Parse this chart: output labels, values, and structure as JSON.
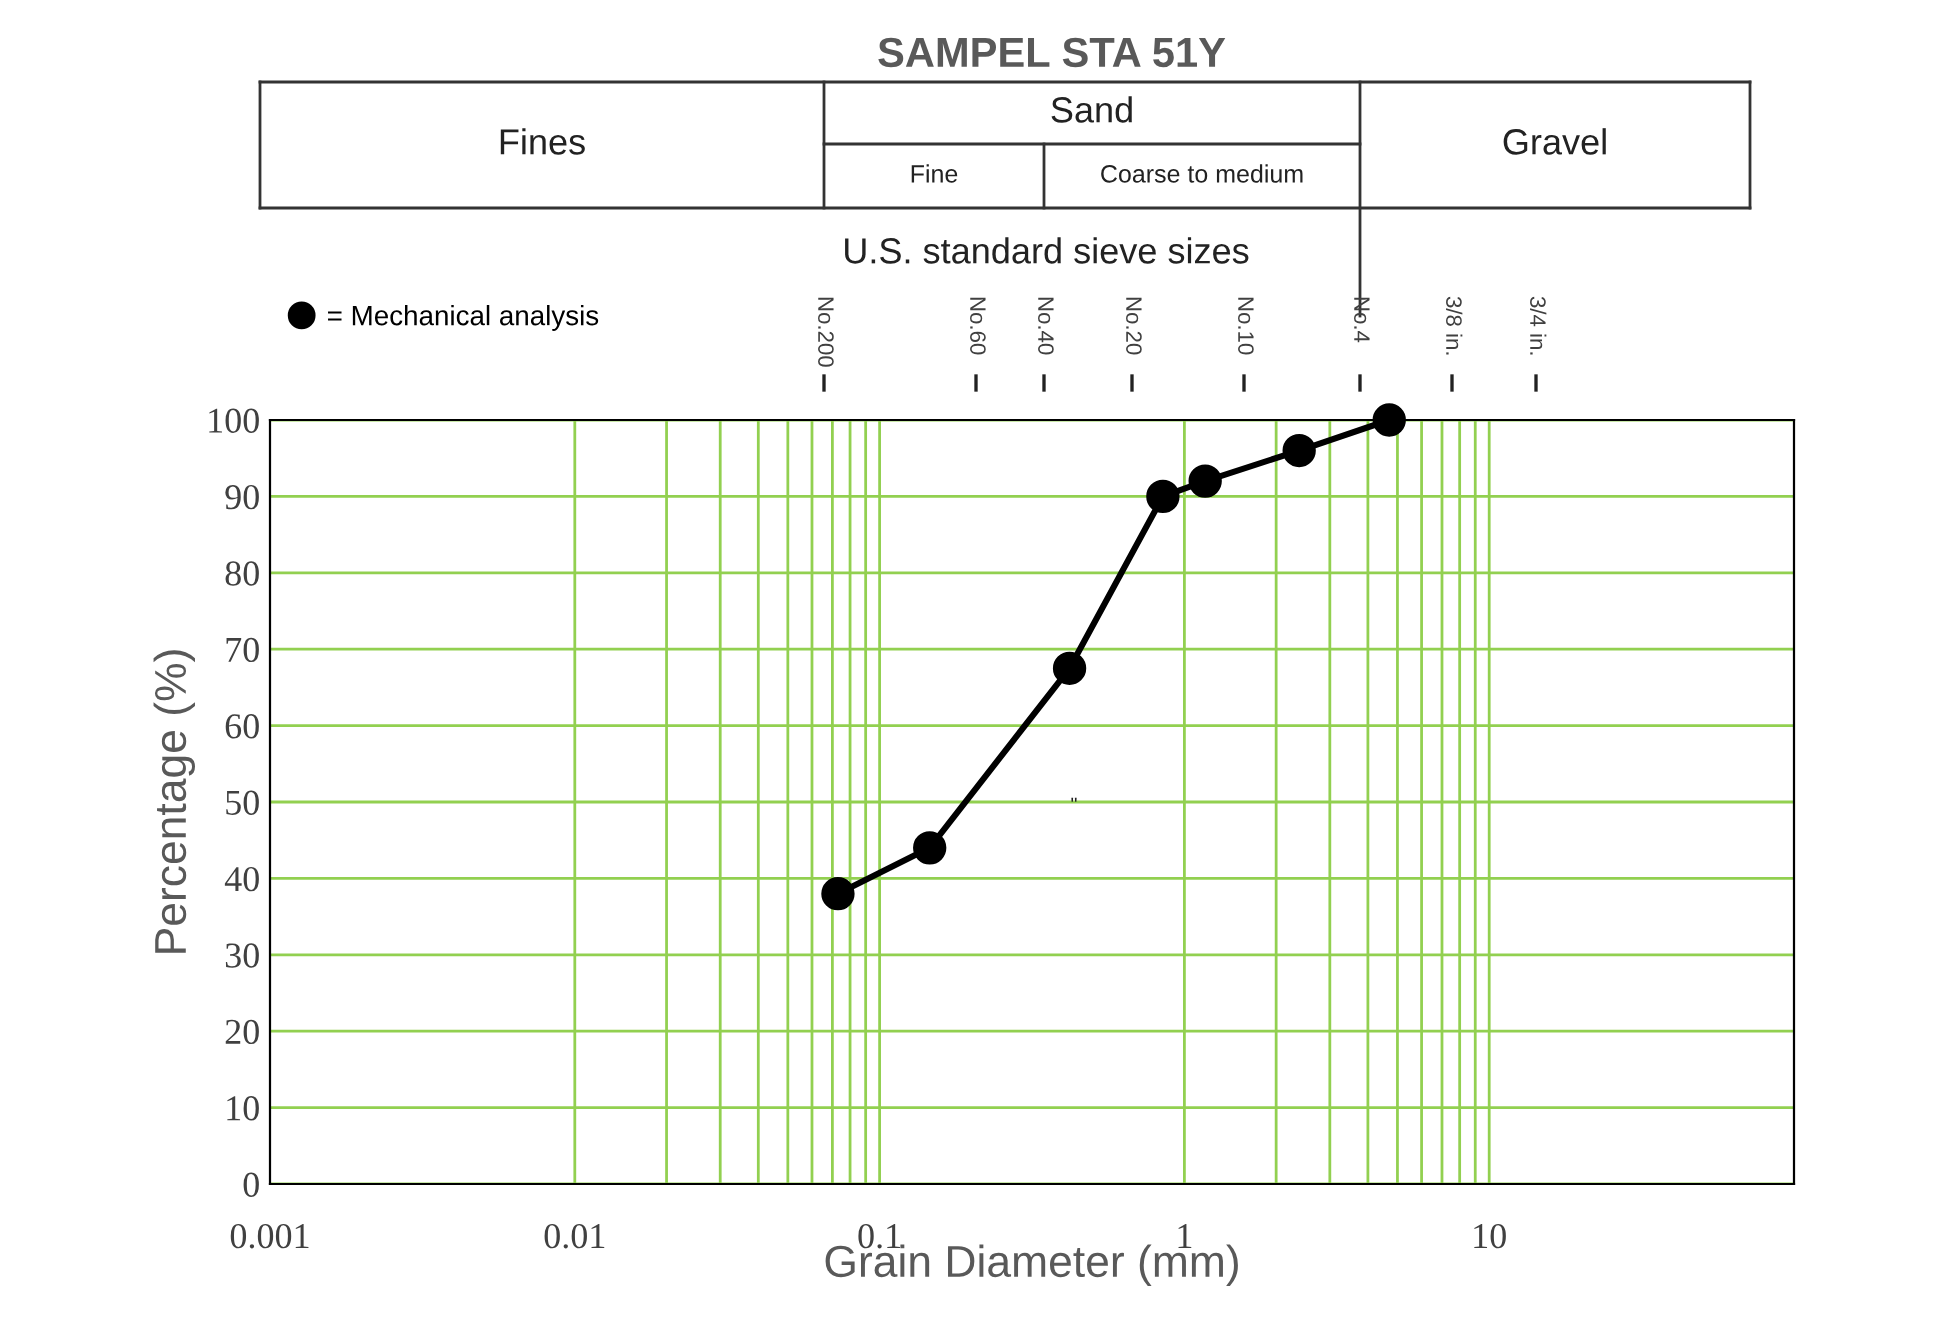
{
  "chart_data": {
    "type": "line",
    "title": "SAMPEL STA 51Y",
    "xlabel": "Grain Diameter (mm)",
    "ylabel": "Percentage (%)",
    "x2label": "U.S. standard sieve sizes",
    "log": "x",
    "xlim": [
      0.001,
      100
    ],
    "xticks": [
      0.001,
      0.01,
      0.1,
      1,
      10
    ],
    "ylim": [
      0,
      100
    ],
    "yticks": [
      0,
      10,
      20,
      30,
      40,
      50,
      60,
      70,
      80,
      90,
      100
    ],
    "grid": "y",
    "marker": "circle",
    "line_style": "solid",
    "legend": "top left",
    "series": [
      {
        "name": "= Mechanical analysis",
        "color": "#000000",
        "x": [
          0.073,
          0.146,
          0.42,
          0.85,
          1.17,
          2.38,
          4.7
        ],
        "values": [
          38,
          44,
          67.5,
          90,
          92,
          96,
          100
        ]
      }
    ],
    "ref_lines": [
      {
        "axis": "x",
        "value": 0.01,
        "color": "#92d050"
      },
      {
        "axis": "x",
        "value": 0.02,
        "color": "#92d050"
      },
      {
        "axis": "x",
        "value": 0.03,
        "color": "#92d050"
      },
      {
        "axis": "x",
        "value": 0.04,
        "color": "#92d050"
      },
      {
        "axis": "x",
        "value": 0.05,
        "color": "#92d050"
      },
      {
        "axis": "x",
        "value": 0.06,
        "color": "#92d050"
      },
      {
        "axis": "x",
        "value": 0.07,
        "color": "#92d050"
      },
      {
        "axis": "x",
        "value": 0.08,
        "color": "#92d050"
      },
      {
        "axis": "x",
        "value": 0.09,
        "color": "#92d050"
      },
      {
        "axis": "x",
        "value": 0.1,
        "color": "#92d050"
      },
      {
        "axis": "x",
        "value": 1,
        "color": "#92d050"
      },
      {
        "axis": "x",
        "value": 2,
        "color": "#92d050"
      },
      {
        "axis": "x",
        "value": 3,
        "color": "#92d050"
      },
      {
        "axis": "x",
        "value": 4,
        "color": "#92d050"
      },
      {
        "axis": "x",
        "value": 5,
        "color": "#92d050"
      },
      {
        "axis": "x",
        "value": 6,
        "color": "#92d050"
      },
      {
        "axis": "x",
        "value": 7,
        "color": "#92d050"
      },
      {
        "axis": "x",
        "value": 8,
        "color": "#92d050"
      },
      {
        "axis": "x",
        "value": 9,
        "color": "#92d050"
      },
      {
        "axis": "x",
        "value": 10,
        "color": "#92d050"
      }
    ],
    "annotations": [
      "Fines",
      "Sand",
      "Fine",
      "Coarse to medium",
      "Gravel",
      "\"",
      "No.200",
      "No.60",
      "No.40",
      "No.20",
      "No.10",
      "No.4",
      "3/8 in.",
      "3/4 in."
    ]
  }
}
